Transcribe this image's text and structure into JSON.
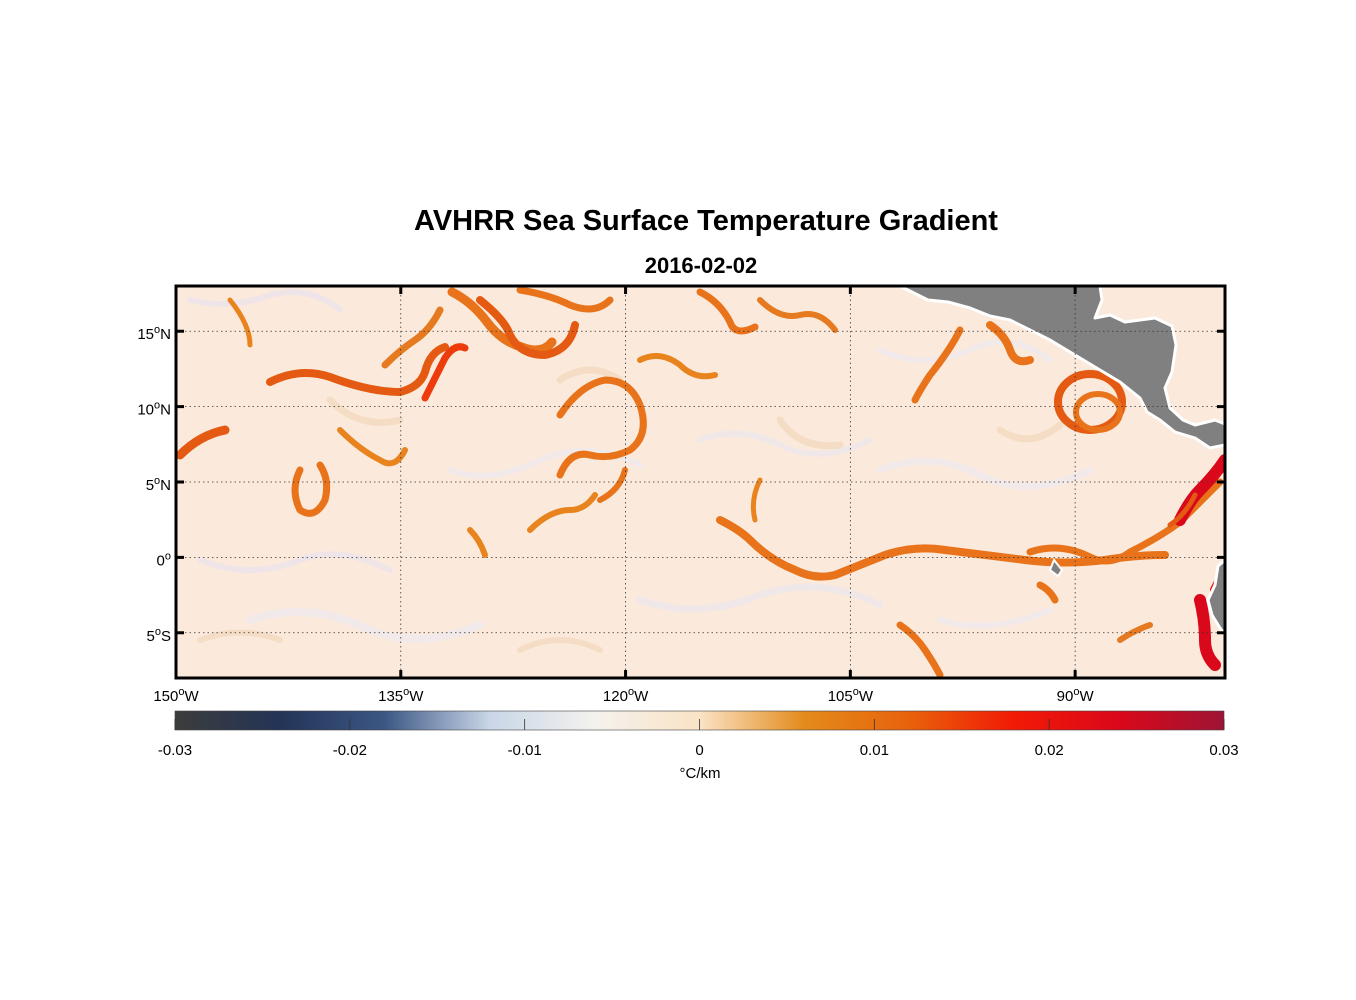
{
  "title": "AVHRR Sea Surface Temperature Gradient",
  "date": "2016-02-02",
  "map": {
    "lon_range": [
      -150,
      -80
    ],
    "lat_range": [
      -8,
      18
    ],
    "lon_ticks": [
      {
        "value": -150,
        "num": "150",
        "hem": "W"
      },
      {
        "value": -135,
        "num": "135",
        "hem": "W"
      },
      {
        "value": -120,
        "num": "120",
        "hem": "W"
      },
      {
        "value": -105,
        "num": "105",
        "hem": "W"
      },
      {
        "value": -90,
        "num": "90",
        "hem": "W"
      }
    ],
    "lat_ticks": [
      {
        "value": 15,
        "num": "15",
        "hem": "N"
      },
      {
        "value": 10,
        "num": "10",
        "hem": "N"
      },
      {
        "value": 5,
        "num": "5",
        "hem": "N"
      },
      {
        "value": 0,
        "num": "0",
        "hem": ""
      },
      {
        "value": -5,
        "num": "5",
        "hem": "S"
      }
    ],
    "gridlines": "dotted",
    "land_color": "#808080",
    "ocean_base_color": "#fbeadb",
    "colormap": "balance-style diverging (dark gray / navy / pale / orange / red / crimson)"
  },
  "colorbar": {
    "ticks": [
      "-0.03",
      "-0.02",
      "-0.01",
      "0",
      "0.01",
      "0.02",
      "0.03"
    ],
    "range": [
      -0.03,
      0.03
    ],
    "unit_label": "°C/km",
    "colors": [
      "#3c3c3c",
      "#233456",
      "#3c5784",
      "#c9d6e8",
      "#f4f2ee",
      "#fae3c6",
      "#e38b1c",
      "#e8620c",
      "#f21a05",
      "#d9081b",
      "#9e1434"
    ]
  }
}
